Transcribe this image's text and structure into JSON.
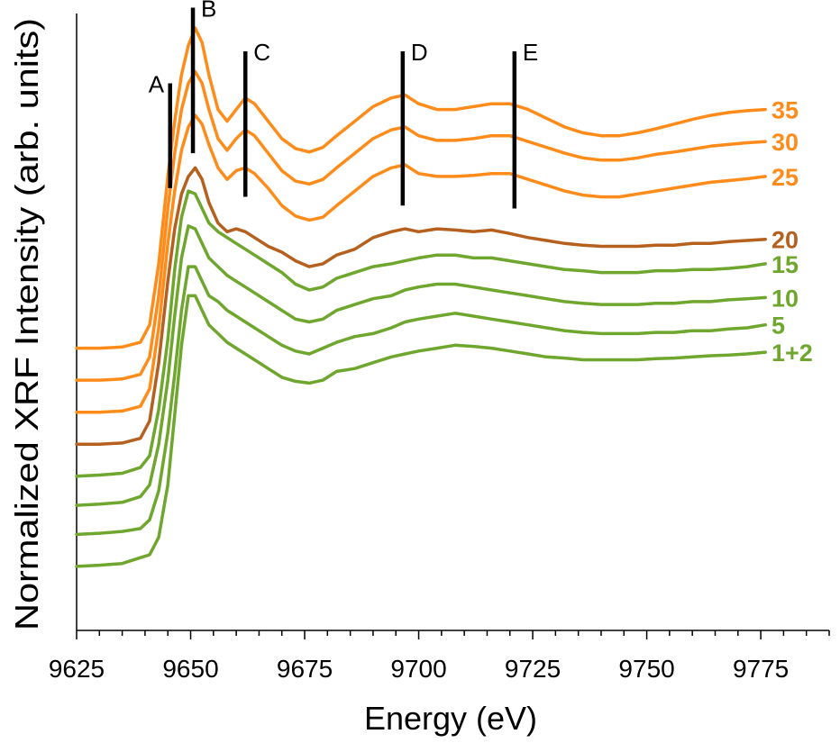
{
  "chart_data": {
    "type": "line",
    "title": "",
    "xlabel": "Energy (eV)",
    "ylabel": "Normalized XRF Intensity (arb. units)",
    "xlim": [
      9625,
      9790
    ],
    "ylim": [
      0,
      10.6
    ],
    "x_ticks": [
      "9625",
      "9650",
      "9675",
      "9700",
      "9725",
      "9750",
      "9775"
    ],
    "grid": false,
    "colors": {
      "orange": "#FF8C1A",
      "brown": "#B5601E",
      "green": "#6FA62E"
    },
    "x": [
      9625,
      9630,
      9635,
      9639,
      9641,
      9643,
      9645,
      9646.5,
      9648,
      9649.5,
      9651,
      9652.5,
      9654,
      9656,
      9658,
      9660,
      9662,
      9664,
      9667,
      9670,
      9673,
      9676,
      9679,
      9682,
      9686,
      9690,
      9694,
      9697,
      9700,
      9704,
      9708,
      9712,
      9716,
      9720,
      9724,
      9728,
      9732,
      9736,
      9740,
      9744,
      9748,
      9752,
      9756,
      9760,
      9764,
      9768,
      9772,
      9776
    ],
    "series": [
      {
        "name": "35",
        "color": "orange",
        "values": [
          4.85,
          4.85,
          4.87,
          4.95,
          5.25,
          6.3,
          7.8,
          8.75,
          9.55,
          10.05,
          10.35,
          10.1,
          9.55,
          8.95,
          8.75,
          8.95,
          9.15,
          9.05,
          8.75,
          8.45,
          8.28,
          8.22,
          8.3,
          8.5,
          8.75,
          9.0,
          9.15,
          9.2,
          9.05,
          8.95,
          8.95,
          9.0,
          9.05,
          9.05,
          8.95,
          8.8,
          8.65,
          8.55,
          8.5,
          8.5,
          8.55,
          8.62,
          8.7,
          8.78,
          8.85,
          8.9,
          8.93,
          8.95
        ]
      },
      {
        "name": "30",
        "color": "orange",
        "values": [
          4.3,
          4.3,
          4.32,
          4.4,
          4.7,
          5.75,
          7.25,
          8.2,
          8.95,
          9.4,
          9.6,
          9.4,
          8.95,
          8.45,
          8.25,
          8.45,
          8.6,
          8.5,
          8.2,
          7.9,
          7.72,
          7.67,
          7.75,
          7.95,
          8.2,
          8.45,
          8.6,
          8.65,
          8.5,
          8.42,
          8.42,
          8.45,
          8.5,
          8.5,
          8.4,
          8.3,
          8.2,
          8.12,
          8.08,
          8.08,
          8.12,
          8.18,
          8.22,
          8.27,
          8.32,
          8.35,
          8.38,
          8.4
        ]
      },
      {
        "name": "25",
        "color": "orange",
        "values": [
          3.75,
          3.75,
          3.77,
          3.85,
          4.15,
          5.2,
          6.65,
          7.55,
          8.25,
          8.65,
          8.85,
          8.7,
          8.35,
          7.95,
          7.75,
          7.9,
          7.95,
          7.85,
          7.6,
          7.3,
          7.12,
          7.05,
          7.1,
          7.3,
          7.55,
          7.8,
          7.95,
          8.0,
          7.85,
          7.8,
          7.8,
          7.82,
          7.85,
          7.85,
          7.75,
          7.65,
          7.55,
          7.48,
          7.45,
          7.45,
          7.5,
          7.55,
          7.6,
          7.65,
          7.7,
          7.73,
          7.76,
          7.8
        ]
      },
      {
        "name": "20",
        "color": "brown",
        "values": [
          3.2,
          3.2,
          3.22,
          3.3,
          3.6,
          4.6,
          6.0,
          6.9,
          7.5,
          7.8,
          7.95,
          7.75,
          7.35,
          7.0,
          6.85,
          6.9,
          6.85,
          6.75,
          6.6,
          6.5,
          6.35,
          6.25,
          6.3,
          6.45,
          6.55,
          6.75,
          6.85,
          6.9,
          6.85,
          6.9,
          6.88,
          6.85,
          6.88,
          6.82,
          6.75,
          6.7,
          6.65,
          6.62,
          6.6,
          6.6,
          6.6,
          6.62,
          6.62,
          6.65,
          6.65,
          6.68,
          6.7,
          6.72
        ]
      },
      {
        "name": "15",
        "color": "green",
        "values": [
          2.65,
          2.67,
          2.7,
          2.8,
          3.0,
          3.8,
          5.0,
          6.2,
          7.1,
          7.55,
          7.5,
          7.25,
          7.0,
          6.85,
          6.75,
          6.65,
          6.55,
          6.45,
          6.3,
          6.15,
          5.95,
          5.85,
          5.9,
          6.05,
          6.15,
          6.25,
          6.3,
          6.35,
          6.4,
          6.45,
          6.45,
          6.4,
          6.4,
          6.35,
          6.3,
          6.25,
          6.2,
          6.18,
          6.15,
          6.15,
          6.15,
          6.18,
          6.18,
          6.2,
          6.2,
          6.22,
          6.25,
          6.3
        ]
      },
      {
        "name": "10",
        "color": "green",
        "values": [
          2.15,
          2.17,
          2.2,
          2.3,
          2.5,
          3.2,
          4.3,
          5.4,
          6.4,
          6.95,
          6.9,
          6.65,
          6.4,
          6.25,
          6.1,
          6.0,
          5.9,
          5.8,
          5.65,
          5.5,
          5.35,
          5.3,
          5.35,
          5.5,
          5.6,
          5.7,
          5.75,
          5.85,
          5.9,
          5.95,
          5.95,
          5.9,
          5.85,
          5.8,
          5.75,
          5.7,
          5.65,
          5.62,
          5.6,
          5.6,
          5.6,
          5.62,
          5.62,
          5.65,
          5.65,
          5.68,
          5.7,
          5.72
        ]
      },
      {
        "name": "5",
        "color": "green",
        "values": [
          1.65,
          1.67,
          1.7,
          1.75,
          1.9,
          2.4,
          3.4,
          4.4,
          5.5,
          6.25,
          6.25,
          6.0,
          5.75,
          5.65,
          5.5,
          5.4,
          5.3,
          5.2,
          5.05,
          4.9,
          4.8,
          4.75,
          4.85,
          4.95,
          5.05,
          5.1,
          5.2,
          5.3,
          5.35,
          5.4,
          5.45,
          5.4,
          5.35,
          5.3,
          5.25,
          5.2,
          5.15,
          5.12,
          5.1,
          5.1,
          5.1,
          5.12,
          5.12,
          5.15,
          5.15,
          5.18,
          5.2,
          5.25
        ]
      },
      {
        "name": "1+2",
        "color": "green",
        "values": [
          1.1,
          1.12,
          1.15,
          1.25,
          1.3,
          1.6,
          2.5,
          3.7,
          4.9,
          5.75,
          5.75,
          5.5,
          5.25,
          5.1,
          4.95,
          4.85,
          4.75,
          4.65,
          4.5,
          4.35,
          4.28,
          4.25,
          4.3,
          4.45,
          4.5,
          4.6,
          4.7,
          4.75,
          4.8,
          4.85,
          4.9,
          4.88,
          4.85,
          4.8,
          4.75,
          4.7,
          4.68,
          4.65,
          4.65,
          4.65,
          4.65,
          4.67,
          4.68,
          4.7,
          4.72,
          4.73,
          4.75,
          4.78
        ]
      }
    ],
    "markers": [
      {
        "label": "A",
        "x": 9645.5,
        "y_bottom": 7.6,
        "y_top": 9.4
      },
      {
        "label": "B",
        "x": 9650.5,
        "y_bottom": 8.2,
        "y_top": 10.7
      },
      {
        "label": "C",
        "x": 9662,
        "y_bottom": 7.45,
        "y_top": 9.95
      },
      {
        "label": "D",
        "x": 9696.5,
        "y_bottom": 7.3,
        "y_top": 9.95
      },
      {
        "label": "E",
        "x": 9721,
        "y_bottom": 7.25,
        "y_top": 9.95
      }
    ]
  }
}
